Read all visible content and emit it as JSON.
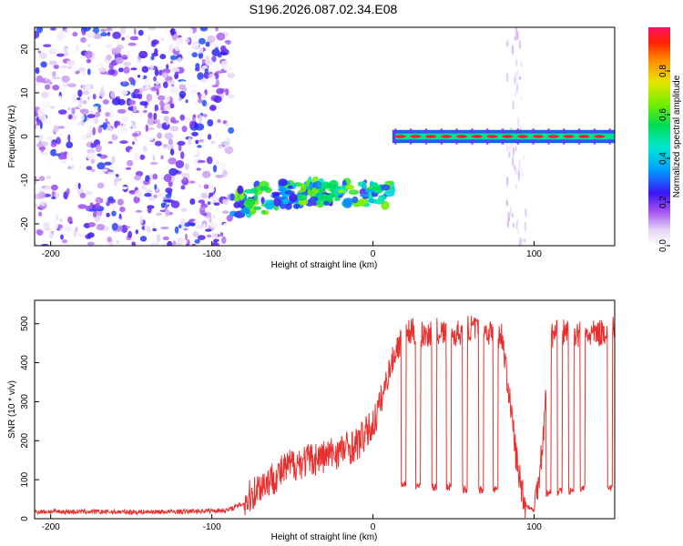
{
  "title": "S196.2026.087.02.34.E08",
  "chart_data": [
    {
      "type": "heatmap",
      "xlabel": "Height of straight line (km)",
      "ylabel": "Frequency (Hz)",
      "xlim": [
        -210,
        150
      ],
      "ylim": [
        -25,
        25
      ],
      "xticks": [
        -200,
        -100,
        0,
        100
      ],
      "xtick_labels": [
        "-200",
        "-100",
        "0",
        "100"
      ],
      "yticks": [
        20,
        10,
        0,
        -10,
        -20
      ],
      "ytick_labels": [
        "20",
        "10",
        "0",
        "-10",
        "-20"
      ],
      "colorbar": {
        "label": "Normalized spectral amplitude",
        "range": [
          0,
          1
        ],
        "ticks": [
          0,
          0.2,
          0.4,
          0.6,
          0.8
        ],
        "tick_labels": [
          "0.0",
          "0.2",
          "0.4",
          "0.6",
          "0.8"
        ]
      },
      "regions": [
        {
          "name": "noise",
          "x_range": [
            -210,
            -88
          ],
          "f_range": [
            -25,
            25
          ],
          "amplitude": 0.15
        },
        {
          "name": "descending-trace",
          "x_range": [
            -88,
            12
          ],
          "f_center": -13,
          "amplitude": 0.5
        },
        {
          "name": "steady-trace",
          "x_range": [
            12,
            150
          ],
          "f_center": 0,
          "amplitude": 0.95
        }
      ]
    },
    {
      "type": "line",
      "xlabel": "Height of straight line (km)",
      "ylabel": "SNR (10 * v/v)",
      "xlim": [
        -210,
        150
      ],
      "ylim": [
        0,
        560
      ],
      "xticks": [
        -200,
        -100,
        0,
        100
      ],
      "xtick_labels": [
        "-200",
        "-100",
        "0",
        "100"
      ],
      "yticks": [
        0,
        100,
        200,
        300,
        400,
        500
      ],
      "ytick_labels": [
        "0",
        "100",
        "200",
        "300",
        "400",
        "500"
      ],
      "color": "#e8312f",
      "series": [
        {
          "name": "SNR",
          "x": [
            -210,
            -180,
            -150,
            -120,
            -90,
            -80,
            -70,
            -60,
            -50,
            -40,
            -30,
            -20,
            -10,
            0,
            5,
            10,
            15,
            20,
            25,
            30,
            40,
            50,
            60,
            70,
            80,
            85,
            90,
            95,
            100,
            105,
            110,
            120,
            130,
            140,
            150
          ],
          "y": [
            18,
            18,
            17,
            18,
            22,
            40,
            85,
            110,
            140,
            150,
            160,
            175,
            190,
            240,
            300,
            380,
            440,
            470,
            480,
            470,
            480,
            470,
            490,
            480,
            470,
            300,
            120,
            35,
            20,
            180,
            470,
            480,
            470,
            475,
            490
          ]
        }
      ],
      "dips": [
        {
          "x": 19,
          "y": 90
        },
        {
          "x": 28,
          "y": 85
        },
        {
          "x": 38,
          "y": 80
        },
        {
          "x": 47,
          "y": 80
        },
        {
          "x": 57,
          "y": 75
        },
        {
          "x": 67,
          "y": 75
        },
        {
          "x": 76,
          "y": 75
        },
        {
          "x": 109,
          "y": 65
        },
        {
          "x": 116,
          "y": 70
        },
        {
          "x": 123,
          "y": 70
        },
        {
          "x": 130,
          "y": 75
        },
        {
          "x": 147,
          "y": 80
        }
      ]
    }
  ]
}
